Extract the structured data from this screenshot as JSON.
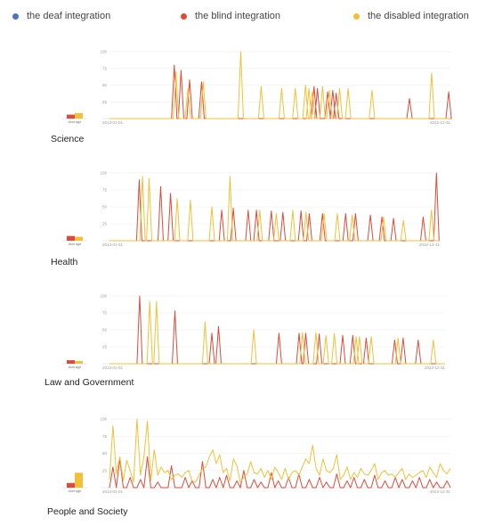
{
  "legend": [
    {
      "label": "the deaf integration",
      "color": "#4e72c4"
    },
    {
      "label": "the blind integration",
      "color": "#e04a39"
    },
    {
      "label": "the disabled integration",
      "color": "#f2c037"
    }
  ],
  "colors": {
    "deaf": "#4e72c4",
    "blind": "#e04a39",
    "disabled": "#f2c037",
    "axis": "#cfcfcf",
    "grid": "#ececec"
  },
  "chart_data": [
    {
      "type": "line",
      "title": "Science",
      "x_start": "2013-01-01",
      "x_end": "2022-12-31",
      "ylim": [
        0,
        100
      ],
      "yticks": [
        "25",
        "50",
        "75",
        "100"
      ],
      "average_label": "Average",
      "average": {
        "blind": 10,
        "disabled": 14
      },
      "series": [
        {
          "name": "the blind integration",
          "color": "#e04a39",
          "spikes": [
            [
              0.19,
              80
            ],
            [
              0.21,
              72
            ],
            [
              0.235,
              58
            ],
            [
              0.27,
              55
            ],
            [
              0.6,
              48
            ],
            [
              0.61,
              45
            ],
            [
              0.64,
              40
            ],
            [
              0.655,
              42
            ],
            [
              0.665,
              38
            ],
            [
              0.88,
              30
            ],
            [
              0.995,
              40
            ]
          ]
        },
        {
          "name": "the disabled integration",
          "color": "#f2c037",
          "spikes": [
            [
              0.195,
              70
            ],
            [
              0.23,
              45
            ],
            [
              0.275,
              55
            ],
            [
              0.385,
              100
            ],
            [
              0.445,
              48
            ],
            [
              0.505,
              45
            ],
            [
              0.545,
              45
            ],
            [
              0.575,
              50
            ],
            [
              0.585,
              45
            ],
            [
              0.595,
              40
            ],
            [
              0.625,
              48
            ],
            [
              0.645,
              42
            ],
            [
              0.675,
              45
            ],
            [
              0.7,
              45
            ],
            [
              0.77,
              42
            ],
            [
              0.945,
              68
            ]
          ]
        }
      ]
    },
    {
      "type": "line",
      "title": "Health",
      "x_start": "2013-01-01",
      "x_end": "2022-12-31",
      "ylim": [
        0,
        100
      ],
      "yticks": [
        "25",
        "50",
        "75",
        "100"
      ],
      "average_label": "Average",
      "average": {
        "blind": 12,
        "disabled": 10
      },
      "series": [
        {
          "name": "the blind integration",
          "color": "#e04a39",
          "spikes": [
            [
              0.09,
              90
            ],
            [
              0.155,
              80
            ],
            [
              0.185,
              70
            ],
            [
              0.34,
              45
            ],
            [
              0.375,
              48
            ],
            [
              0.42,
              45
            ],
            [
              0.445,
              45
            ],
            [
              0.49,
              44
            ],
            [
              0.525,
              42
            ],
            [
              0.58,
              44
            ],
            [
              0.605,
              40
            ],
            [
              0.645,
              40
            ],
            [
              0.715,
              40
            ],
            [
              0.745,
              40
            ],
            [
              0.79,
              38
            ],
            [
              0.825,
              35
            ],
            [
              0.86,
              33
            ],
            [
              0.95,
              35
            ],
            [
              0.99,
              100
            ]
          ]
        },
        {
          "name": "the disabled integration",
          "color": "#f2c037",
          "spikes": [
            [
              0.1,
              95
            ],
            [
              0.12,
              92
            ],
            [
              0.205,
              62
            ],
            [
              0.245,
              60
            ],
            [
              0.31,
              50
            ],
            [
              0.365,
              95
            ],
            [
              0.455,
              45
            ],
            [
              0.505,
              40
            ],
            [
              0.555,
              45
            ],
            [
              0.595,
              42
            ],
            [
              0.65,
              40
            ],
            [
              0.69,
              40
            ],
            [
              0.735,
              38
            ],
            [
              0.83,
              35
            ],
            [
              0.89,
              30
            ],
            [
              0.975,
              45
            ]
          ]
        }
      ]
    },
    {
      "type": "line",
      "title": "Law and Government",
      "x_start": "2013-01-01",
      "x_end": "2022-12-31",
      "ylim": [
        0,
        100
      ],
      "yticks": [
        "25",
        "50",
        "75",
        "100"
      ],
      "average_label": "Average",
      "average": {
        "blind": 9,
        "disabled": 7
      },
      "series": [
        {
          "name": "the blind integration",
          "color": "#e04a39",
          "spikes": [
            [
              0.09,
              100
            ],
            [
              0.195,
              78
            ],
            [
              0.305,
              45
            ],
            [
              0.325,
              55
            ],
            [
              0.505,
              45
            ],
            [
              0.565,
              45
            ],
            [
              0.585,
              45
            ],
            [
              0.625,
              44
            ],
            [
              0.695,
              42
            ],
            [
              0.725,
              42
            ],
            [
              0.765,
              38
            ],
            [
              0.85,
              35
            ],
            [
              0.875,
              38
            ],
            [
              0.92,
              35
            ]
          ]
        },
        {
          "name": "the disabled integration",
          "color": "#f2c037",
          "spikes": [
            [
              0.12,
              92
            ],
            [
              0.14,
              92
            ],
            [
              0.285,
              62
            ],
            [
              0.43,
              50
            ],
            [
              0.575,
              46
            ],
            [
              0.615,
              46
            ],
            [
              0.645,
              42
            ],
            [
              0.67,
              45
            ],
            [
              0.735,
              40
            ],
            [
              0.745,
              40
            ],
            [
              0.78,
              40
            ],
            [
              0.86,
              38
            ],
            [
              0.965,
              35
            ]
          ]
        }
      ]
    },
    {
      "type": "line",
      "title": "People and Society",
      "x_start": "2013-01-01",
      "x_end": "2022-12-31",
      "ylim": [
        0,
        100
      ],
      "yticks": [
        "25",
        "50",
        "75",
        "100"
      ],
      "average_label": "Average",
      "average": {
        "blind": 12,
        "disabled": 38
      },
      "series": [
        {
          "name": "the blind integration",
          "color": "#e04a39",
          "values": [
            0,
            30,
            0,
            42,
            0,
            0,
            15,
            0,
            0,
            12,
            0,
            45,
            0,
            0,
            8,
            0,
            0,
            0,
            32,
            0,
            0,
            0,
            15,
            0,
            10,
            0,
            0,
            38,
            0,
            0,
            12,
            0,
            15,
            0,
            18,
            0,
            0,
            10,
            0,
            25,
            0,
            0,
            12,
            0,
            8,
            0,
            0,
            22,
            0,
            10,
            0,
            0,
            15,
            0,
            0,
            20,
            0,
            0,
            12,
            0,
            0,
            15,
            0,
            8,
            0,
            0,
            20,
            0,
            0,
            10,
            0,
            15,
            0,
            0,
            12,
            0,
            0,
            18,
            0,
            0,
            10,
            0,
            0,
            15,
            0,
            12,
            0,
            0,
            10,
            0,
            15,
            0,
            0,
            12,
            0,
            8,
            0,
            0,
            10,
            0
          ]
        },
        {
          "name": "the disabled integration",
          "color": "#f2c037",
          "values": [
            12,
            90,
            20,
            45,
            10,
            40,
            25,
            8,
            100,
            18,
            45,
            97,
            10,
            55,
            18,
            30,
            22,
            25,
            12,
            18,
            20,
            15,
            22,
            25,
            10,
            8,
            18,
            28,
            30,
            45,
            55,
            35,
            48,
            22,
            28,
            10,
            42,
            32,
            8,
            15,
            20,
            38,
            22,
            20,
            28,
            15,
            25,
            12,
            30,
            22,
            12,
            28,
            12,
            22,
            25,
            18,
            30,
            42,
            35,
            62,
            28,
            18,
            42,
            25,
            22,
            28,
            48,
            12,
            18,
            30,
            12,
            22,
            15,
            28,
            20,
            18,
            25,
            35,
            12,
            22,
            25,
            18,
            20,
            15,
            22,
            28,
            12,
            20,
            15,
            18,
            22,
            25,
            15,
            30,
            22,
            15,
            35,
            25,
            20,
            28
          ]
        }
      ]
    }
  ]
}
